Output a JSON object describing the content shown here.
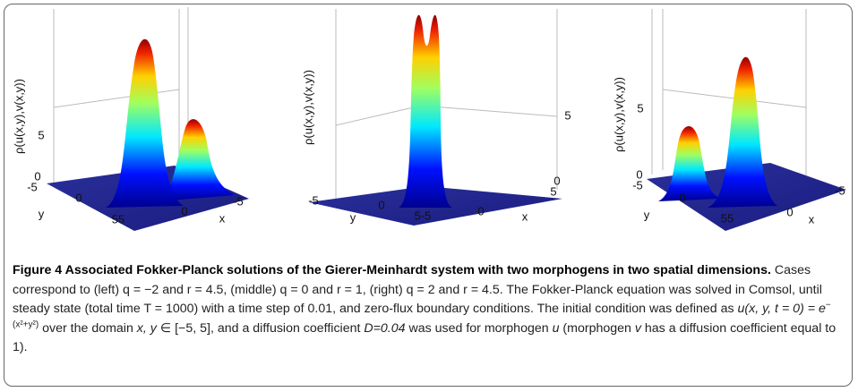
{
  "panels": [
    {
      "ylabel": "ρ(u(x,y),v(x,y))",
      "ticks": [
        "5",
        "0",
        "-5",
        "y",
        "0",
        "55",
        "0",
        "x",
        "-5"
      ]
    },
    {
      "ylabel": "ρ(u(x,y),v(x,y))",
      "ticks": [
        "5",
        "0",
        "5",
        "-5",
        "y",
        "0",
        "5-5",
        "0",
        "x"
      ]
    },
    {
      "ylabel": "ρ(u(x,y),v(x,y))",
      "ticks": [
        "5",
        "0",
        "-5",
        "y",
        "0",
        "55",
        "0",
        "x",
        "-5"
      ]
    }
  ],
  "caption": {
    "title": "Figure 4 Associated Fokker-Planck solutions of the Gierer-Meinhardt system with two morphogens in two spatial dimensions.",
    "text1": "Cases correspond to (left) q = −2 and r = 4.5, (middle) q = 0 and r = 1, (right) q = 2 and r = 4.5. The Fokker-Planck equation was solved in Comsol, until steady state (total time T = 1000) with a time step of 0.01, and zero-flux boundary conditions. The initial condition was defined as ",
    "formula": "u(x, y, t = 0) = e",
    "exponent": "−(x²+y²)",
    "text2": " over the domain ",
    "domain_vars": "x, y",
    "text3": " ∈ [−5, 5], and a diffusion coefficient ",
    "coefficient": "D=0.04",
    "text4": " was used for morphogen ",
    "u": "u",
    "text5": " (morphogen ",
    "v": "v",
    "text6": " has a diffusion coefficient equal to 1)."
  }
}
